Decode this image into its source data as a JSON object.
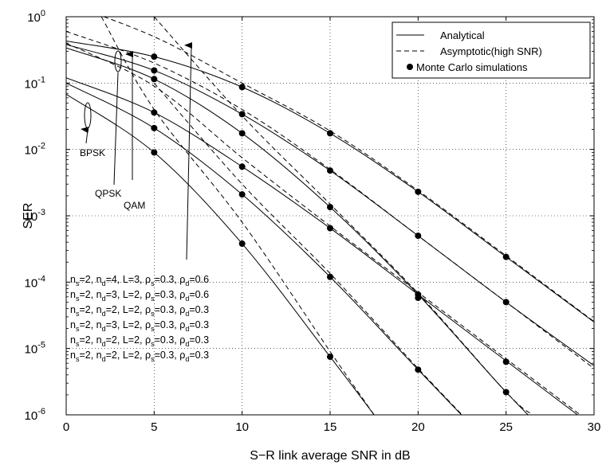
{
  "chart_data": {
    "type": "line",
    "xlabel": "S−R link average SNR in dB",
    "ylabel": "SER",
    "xlim": [
      0,
      30
    ],
    "ylim": [
      1e-06,
      1
    ],
    "yscale": "log",
    "grid": true,
    "x_ticks": [
      0,
      5,
      10,
      15,
      20,
      25,
      30
    ],
    "y_ticks": [
      1e-06,
      1e-05,
      0.0001,
      0.001,
      0.01,
      0.1,
      1
    ],
    "y_tick_exponents": [
      "-6",
      "-5",
      "-4",
      "-3",
      "-2",
      "-1",
      "0"
    ],
    "y_tick_base": "10",
    "legend": {
      "position": "top-right",
      "entries": [
        {
          "label": "Analytical",
          "style": "solid"
        },
        {
          "label": "Asymptotic(high SNR)",
          "style": "dashed"
        },
        {
          "label": "Monte Carlo simulations",
          "style": "marker"
        }
      ]
    },
    "series": [
      {
        "analytical": [
          [
            0,
            0.43
          ],
          [
            5,
            0.25
          ],
          [
            10,
            0.087
          ],
          [
            15,
            0.0175
          ],
          [
            20,
            0.0023
          ],
          [
            25,
            0.00024
          ],
          [
            30,
            2.5e-05
          ]
        ],
        "asymptotic": [
          [
            0,
            1.6
          ],
          [
            5,
            0.5
          ],
          [
            10,
            0.1
          ],
          [
            15,
            0.019
          ],
          [
            20,
            0.0024
          ],
          [
            25,
            0.00025
          ],
          [
            30,
            2.55e-05
          ]
        ],
        "mc_x": [
          5,
          10,
          15,
          20,
          25
        ],
        "mc_y": [
          0.25,
          0.087,
          0.0175,
          0.0023,
          0.00024
        ]
      },
      {
        "analytical": [
          [
            0,
            0.38
          ],
          [
            5,
            0.155
          ],
          [
            10,
            0.034
          ],
          [
            15,
            0.0048
          ],
          [
            20,
            0.0005
          ],
          [
            25,
            5e-05
          ],
          [
            30,
            5.5e-06
          ]
        ],
        "asymptotic": [
          [
            0,
            0.6
          ],
          [
            5,
            0.2
          ],
          [
            10,
            0.04
          ],
          [
            15,
            0.005
          ],
          [
            20,
            0.0005
          ],
          [
            25,
            5e-05
          ],
          [
            30,
            5e-06
          ]
        ],
        "mc_x": [
          5,
          10,
          15,
          20,
          25
        ],
        "mc_y": [
          0.155,
          0.034,
          0.0048,
          0.0005,
          5e-05
        ]
      },
      {
        "analytical": [
          [
            0,
            0.34
          ],
          [
            5,
            0.115
          ],
          [
            10,
            0.0175
          ],
          [
            15,
            0.00135
          ],
          [
            20,
            6.5e-05
          ],
          [
            25,
            2.2e-06
          ],
          [
            28,
            3.5e-07
          ]
        ],
        "asymptotic": [
          [
            5,
            1.0
          ],
          [
            10,
            0.032
          ],
          [
            15,
            0.0015
          ],
          [
            20,
            6.8e-05
          ],
          [
            25,
            2.2e-06
          ],
          [
            26.5,
            1e-06
          ]
        ],
        "mc_x": [
          5,
          10,
          15,
          20,
          25
        ],
        "mc_y": [
          0.115,
          0.0175,
          0.00135,
          6.5e-05,
          2.2e-06
        ]
      },
      {
        "analytical": [
          [
            0,
            0.12
          ],
          [
            5,
            0.036
          ],
          [
            10,
            0.0055
          ],
          [
            15,
            0.00065
          ],
          [
            20,
            6.5e-05
          ],
          [
            25,
            6.5e-06
          ],
          [
            30,
            6.5e-07
          ]
        ],
        "asymptotic": [
          [
            0,
            0.4
          ],
          [
            5,
            0.09
          ],
          [
            10,
            0.0075
          ],
          [
            15,
            0.0007
          ],
          [
            20,
            7e-05
          ],
          [
            25,
            7e-06
          ],
          [
            30,
            7e-07
          ]
        ],
        "mc_x": [
          5,
          10,
          15,
          20,
          25
        ],
        "mc_y": [
          0.036,
          0.0055,
          0.00065,
          5.8e-05,
          6.3e-06
        ]
      },
      {
        "analytical": [
          [
            0,
            0.1
          ],
          [
            5,
            0.021
          ],
          [
            10,
            0.0021
          ],
          [
            15,
            0.00012
          ],
          [
            20,
            4.8e-06
          ],
          [
            25,
            2e-07
          ]
        ],
        "asymptotic": [
          [
            5,
            0.1
          ],
          [
            10,
            0.003
          ],
          [
            15,
            0.000135
          ],
          [
            20,
            5e-06
          ],
          [
            22.5,
            1e-06
          ]
        ],
        "mc_x": [
          5,
          10,
          15,
          20
        ],
        "mc_y": [
          0.021,
          0.0021,
          0.00012,
          4.8e-06
        ]
      },
      {
        "analytical": [
          [
            0,
            0.068
          ],
          [
            5,
            0.009
          ],
          [
            10,
            0.00038
          ],
          [
            15,
            7.5e-06
          ],
          [
            17.5,
            1e-06
          ]
        ],
        "asymptotic": [
          [
            2,
            1.0
          ],
          [
            5,
            0.04
          ],
          [
            10,
            0.0008
          ],
          [
            15,
            9e-06
          ],
          [
            17.5,
            1e-06
          ]
        ],
        "mc_x": [
          5,
          10,
          15
        ],
        "mc_y": [
          0.009,
          0.00038,
          7.5e-06
        ]
      }
    ],
    "annotations": [
      {
        "id": "bpsk",
        "text": "BPSK"
      },
      {
        "id": "qpsk",
        "text": "QPSK"
      },
      {
        "id": "qam",
        "text": "QAM"
      }
    ],
    "parameter_lines": [
      [
        {
          "t": "n"
        },
        {
          "sub": "s"
        },
        {
          "t": "=2, n"
        },
        {
          "sub": "d"
        },
        {
          "t": "=4, L=3, ρ"
        },
        {
          "sub": "s"
        },
        {
          "t": "=0.3, ρ"
        },
        {
          "sub": "d"
        },
        {
          "t": "=0.6"
        }
      ],
      [
        {
          "t": "n"
        },
        {
          "sub": "s"
        },
        {
          "t": "=2, n"
        },
        {
          "sub": "d"
        },
        {
          "t": "=3, L=2, ρ"
        },
        {
          "sub": "s"
        },
        {
          "t": "=0.3, ρ"
        },
        {
          "sub": "d"
        },
        {
          "t": "=0.6"
        }
      ],
      [
        {
          "t": "n"
        },
        {
          "sub": "s"
        },
        {
          "t": "=2, n"
        },
        {
          "sub": "d"
        },
        {
          "t": "=2, L=2, ρ"
        },
        {
          "sub": "s"
        },
        {
          "t": "=0.3, ρ"
        },
        {
          "sub": "d"
        },
        {
          "t": "=0.3"
        }
      ],
      [
        {
          "t": "n"
        },
        {
          "sub": "s"
        },
        {
          "t": "=2, n"
        },
        {
          "sub": "d"
        },
        {
          "t": "=3, L=2, ρ"
        },
        {
          "sub": "s"
        },
        {
          "t": "=0.3, ρ"
        },
        {
          "sub": "d"
        },
        {
          "t": "=0.3"
        }
      ],
      [
        {
          "t": "n"
        },
        {
          "sub": "s"
        },
        {
          "t": "=2, n"
        },
        {
          "sub": "d"
        },
        {
          "t": "=2, L=2, ρ"
        },
        {
          "sub": "s"
        },
        {
          "t": "=0.3, ρ"
        },
        {
          "sub": "d"
        },
        {
          "t": "=0.3"
        }
      ],
      [
        {
          "t": "n"
        },
        {
          "sub": "s"
        },
        {
          "t": "=2, n"
        },
        {
          "sub": "d"
        },
        {
          "t": "=2, L=2, ρ"
        },
        {
          "sub": "s"
        },
        {
          "t": "=0.3, ρ"
        },
        {
          "sub": "d"
        },
        {
          "t": "=0.3"
        }
      ]
    ]
  }
}
